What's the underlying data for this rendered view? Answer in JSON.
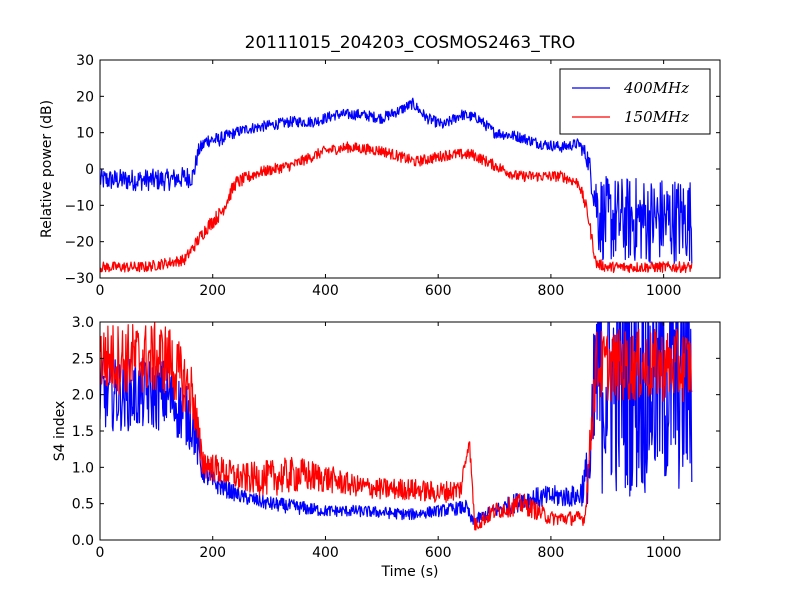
{
  "chart_data": [
    {
      "type": "line",
      "title": "20111015_204203_COSMOS2463_TRO",
      "xlabel": "",
      "ylabel": "Relative power (dB)",
      "xlim": [
        0,
        1100
      ],
      "ylim": [
        -30,
        30
      ],
      "xticks": [
        "0",
        "200",
        "400",
        "600",
        "800",
        "1000"
      ],
      "yticks": [
        "−30",
        "−20",
        "−10",
        "0",
        "10",
        "20",
        "30"
      ],
      "legend_position": "upper right",
      "series": [
        {
          "name": "400MHz",
          "color": "#0000ff",
          "x": [
            0,
            60,
            120,
            165,
            175,
            190,
            210,
            240,
            260,
            300,
            340,
            380,
            420,
            460,
            500,
            530,
            555,
            580,
            610,
            640,
            670,
            700,
            740,
            780,
            820,
            850,
            865,
            875,
            885,
            895,
            1050
          ],
          "y": [
            -3,
            -3,
            -3,
            -2,
            5,
            8,
            8,
            10,
            11,
            12,
            13,
            13,
            15,
            15,
            14,
            16,
            18,
            14,
            12,
            15,
            14,
            10,
            9,
            7,
            6,
            7,
            3,
            -5,
            -12,
            -14,
            -14
          ],
          "noise": [
            3,
            3,
            3,
            3,
            2,
            2,
            2,
            1.5,
            1.5,
            1.5,
            1.5,
            1.5,
            1.5,
            1.5,
            1.5,
            1.5,
            1.5,
            1.5,
            1.5,
            1.5,
            1.5,
            1.5,
            1.5,
            1.5,
            1.5,
            1.5,
            3,
            5,
            12,
            12,
            12
          ]
        },
        {
          "name": "150MHz",
          "color": "#ff0000",
          "x": [
            0,
            80,
            150,
            190,
            215,
            240,
            280,
            340,
            400,
            440,
            500,
            560,
            620,
            660,
            700,
            740,
            780,
            820,
            850,
            865,
            880,
            900,
            1050
          ],
          "y": [
            -27,
            -27,
            -25,
            -16,
            -12,
            -4,
            -1,
            1,
            5,
            6,
            5,
            2,
            4,
            4,
            1,
            -2,
            -2,
            -2,
            -4,
            -12,
            -26,
            -27,
            -27
          ],
          "noise": [
            1.5,
            1.5,
            1.5,
            2,
            2,
            2,
            1.5,
            1.5,
            1.5,
            1.5,
            1.5,
            1.5,
            1.5,
            1.5,
            1.5,
            1.5,
            1.5,
            1.5,
            1.5,
            2,
            1.5,
            1.5,
            1.5
          ]
        }
      ]
    },
    {
      "type": "line",
      "title": "",
      "xlabel": "Time (s)",
      "ylabel": "S4 index",
      "xlim": [
        0,
        1100
      ],
      "ylim": [
        0,
        3
      ],
      "xticks": [
        "0",
        "200",
        "400",
        "600",
        "800",
        "1000"
      ],
      "yticks": [
        "0.0",
        "0.5",
        "1.0",
        "1.5",
        "2.0",
        "2.5",
        "3.0"
      ],
      "series": [
        {
          "name": "400MHz",
          "color": "#0000ff",
          "x": [
            0,
            60,
            120,
            165,
            180,
            200,
            250,
            300,
            350,
            400,
            450,
            500,
            550,
            600,
            650,
            660,
            700,
            750,
            800,
            850,
            870,
            880,
            1050
          ],
          "y": [
            2.0,
            2.0,
            2.0,
            1.6,
            1.0,
            0.8,
            0.6,
            0.5,
            0.45,
            0.4,
            0.4,
            0.38,
            0.35,
            0.4,
            0.45,
            0.25,
            0.4,
            0.55,
            0.6,
            0.6,
            1.0,
            2.2,
            2.2
          ],
          "noise": [
            0.5,
            0.5,
            0.5,
            0.4,
            0.2,
            0.15,
            0.1,
            0.1,
            0.1,
            0.08,
            0.08,
            0.08,
            0.08,
            0.08,
            0.1,
            0.08,
            0.1,
            0.15,
            0.15,
            0.15,
            0.5,
            1.6,
            1.6
          ]
        },
        {
          "name": "150MHz",
          "color": "#ff0000",
          "x": [
            0,
            60,
            120,
            165,
            180,
            200,
            250,
            300,
            350,
            400,
            450,
            500,
            550,
            600,
            640,
            655,
            665,
            700,
            750,
            800,
            860,
            880,
            1050
          ],
          "y": [
            2.5,
            2.5,
            2.5,
            2.0,
            1.1,
            1.0,
            0.85,
            0.85,
            0.9,
            0.85,
            0.75,
            0.7,
            0.7,
            0.65,
            0.7,
            1.4,
            0.2,
            0.4,
            0.5,
            0.3,
            0.3,
            2.4,
            2.4
          ],
          "noise": [
            0.5,
            0.5,
            0.5,
            0.4,
            0.25,
            0.2,
            0.2,
            0.25,
            0.25,
            0.2,
            0.15,
            0.15,
            0.15,
            0.15,
            0.15,
            0.1,
            0.1,
            0.12,
            0.15,
            0.1,
            0.1,
            0.5,
            0.5
          ]
        }
      ]
    }
  ]
}
